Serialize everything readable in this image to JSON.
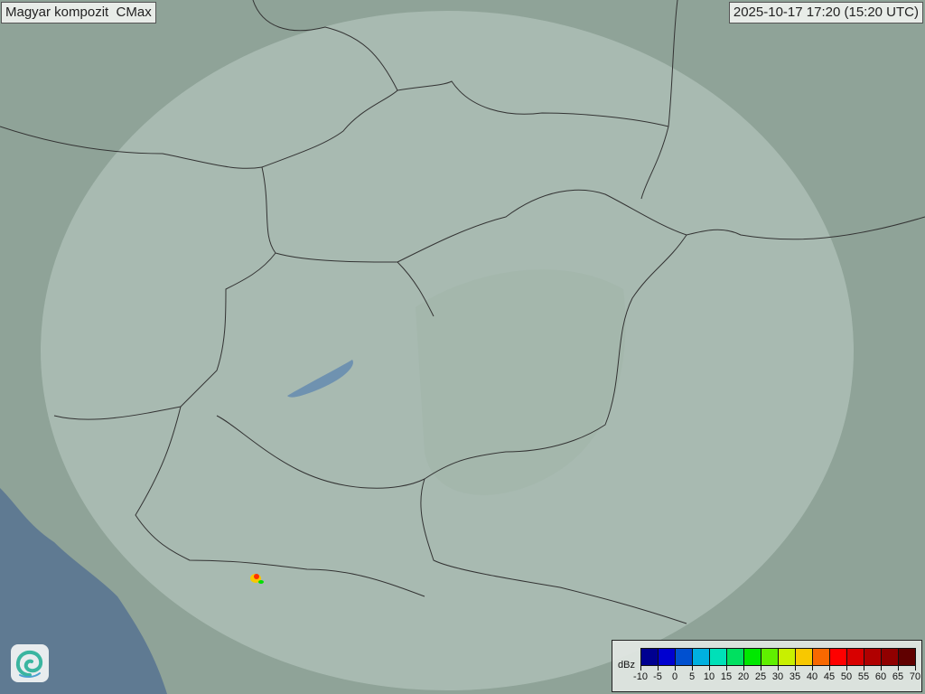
{
  "header": {
    "title": "Magyar kompozit  CMax",
    "timestamp": "2025-10-17 17:20 (15:20 UTC)"
  },
  "legend": {
    "unit": "dBz",
    "ticks": [
      "-10",
      "-5",
      "0",
      "5",
      "10",
      "15",
      "20",
      "25",
      "30",
      "35",
      "40",
      "45",
      "50",
      "55",
      "60",
      "65",
      "70"
    ],
    "colors": [
      "#000090",
      "#0000d0",
      "#0050d0",
      "#00b0e0",
      "#00e0b8",
      "#00e060",
      "#00e800",
      "#60f000",
      "#c8f000",
      "#f8c800",
      "#f86800",
      "#ff0000",
      "#d80000",
      "#b00000",
      "#900000",
      "#600000"
    ]
  },
  "map": {
    "land_color": "#8fa398",
    "sea_color": "#5f7a92",
    "coverage_color": "#c8d8d0",
    "echoes": [
      {
        "dbz": 45,
        "color": "#ff3000"
      },
      {
        "dbz": 35,
        "color": "#f8c800"
      },
      {
        "dbz": 20,
        "color": "#00e000"
      }
    ]
  },
  "logo": {
    "icon": "swirl-logo-icon"
  }
}
